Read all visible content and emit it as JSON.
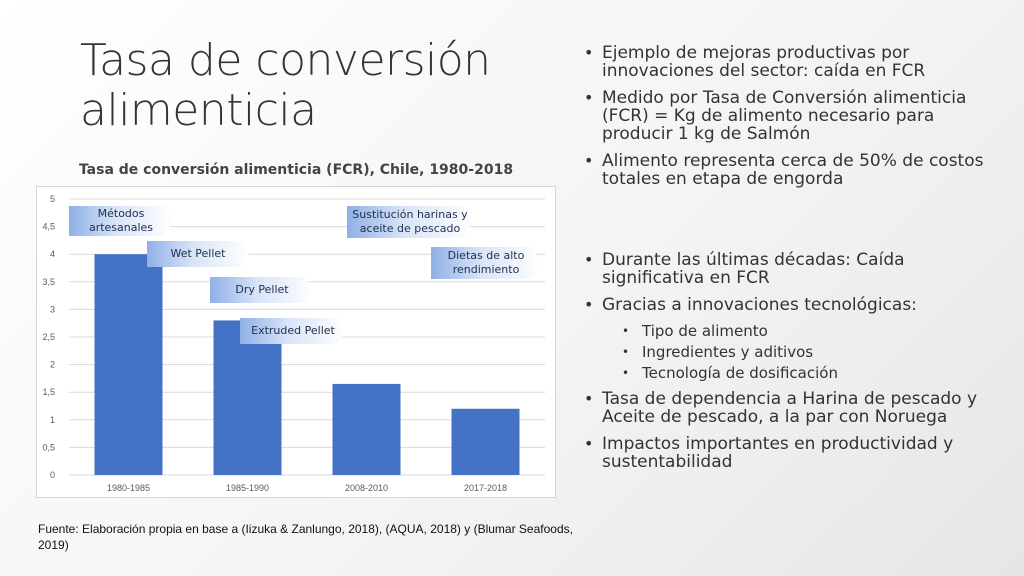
{
  "title": "Tasa de conversión alimenticia",
  "chart_data": {
    "type": "bar",
    "title": "Tasa de conversión alimenticia (FCR), Chile, 1980-2018",
    "categories": [
      "1980-1985",
      "1985-1990",
      "2008-2010",
      "2017-2018"
    ],
    "values": [
      4.0,
      2.8,
      1.65,
      1.2
    ],
    "yticks": [
      "0",
      "0,5",
      "1",
      "1,5",
      "2",
      "2,5",
      "3",
      "3,5",
      "4",
      "4,5",
      "5"
    ],
    "ylim": [
      0,
      5
    ],
    "grid": true,
    "bar_color": "#4472c4",
    "annotations": [
      "Métodos artesanales",
      "Wet Pellet",
      "Dry Pellet",
      "Extruded Pellet",
      "Sustitución harinas y aceite de pescado",
      "Dietas de alto rendimiento"
    ]
  },
  "bullets_top": [
    "Ejemplo de mejoras productivas por innovaciones del sector: caída en FCR",
    "Medido por Tasa de Conversión alimenticia (FCR) = Kg de alimento necesario para producir 1 kg de Salmón",
    "Alimento representa cerca de 50% de costos totales en etapa de engorda"
  ],
  "bullets_bottom": {
    "b1": "Durante las últimas décadas: Caída significativa en FCR",
    "b2": "Gracias a innovaciones tecnológicas:",
    "subs": [
      "Tipo de alimento",
      "Ingredientes y aditivos",
      "Tecnología de dosificación"
    ],
    "b3": "Tasa de dependencia a Harina de pescado y Aceite de pescado, a la par con Noruega",
    "b4": "Impactos importantes en productividad y sustentabilidad"
  },
  "source": "Fuente: Elaboración propia en base a (Iizuka & Zanlungo, 2018), (AQUA, 2018) y (Blumar Seafoods, 2019)"
}
